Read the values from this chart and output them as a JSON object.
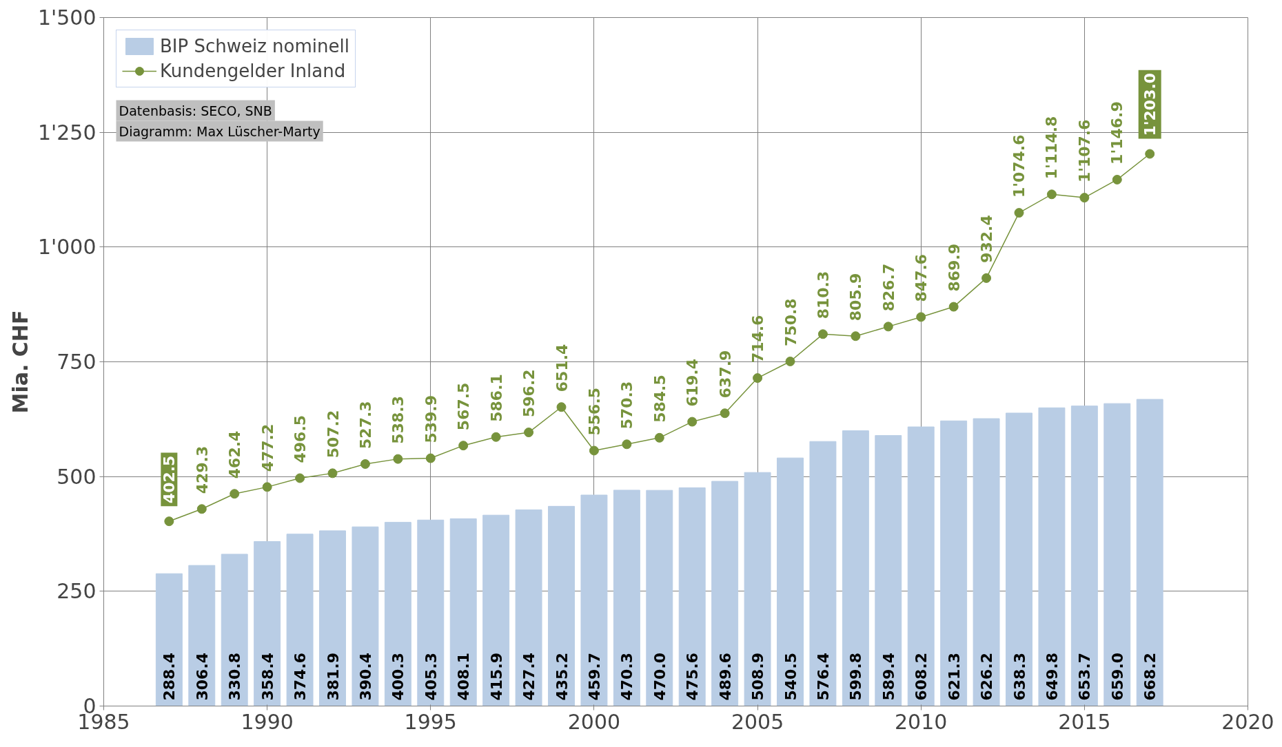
{
  "chart_data": {
    "type": "bar",
    "ylabel": "Mia. CHF",
    "x": [
      1987,
      1988,
      1989,
      1990,
      1991,
      1992,
      1993,
      1994,
      1995,
      1996,
      1997,
      1998,
      1999,
      2000,
      2001,
      2002,
      2003,
      2004,
      2005,
      2006,
      2007,
      2008,
      2009,
      2010,
      2011,
      2012,
      2013,
      2014,
      2015,
      2016,
      2017
    ],
    "series": [
      {
        "name": "BIP Schweiz nominell",
        "color": "#b9cde5",
        "values": [
          288.4,
          306.4,
          330.8,
          358.4,
          374.6,
          381.9,
          390.4,
          400.3,
          405.3,
          408.1,
          415.9,
          427.4,
          435.2,
          459.7,
          470.3,
          470.0,
          475.6,
          489.6,
          508.9,
          540.5,
          576.4,
          599.8,
          589.4,
          608.2,
          621.3,
          626.2,
          638.3,
          649.8,
          653.7,
          659.0,
          668.2
        ],
        "value_labels": [
          "288.4",
          "306.4",
          "330.8",
          "358.4",
          "374.6",
          "381.9",
          "390.4",
          "400.3",
          "405.3",
          "408.1",
          "415.9",
          "427.4",
          "435.2",
          "459.7",
          "470.3",
          "470.0",
          "475.6",
          "489.6",
          "508.9",
          "540.5",
          "576.4",
          "599.8",
          "589.4",
          "608.2",
          "621.3",
          "626.2",
          "638.3",
          "649.8",
          "653.7",
          "659.0",
          "668.2"
        ]
      },
      {
        "name": "Kundengelder Inland",
        "type": "line",
        "color": "#77933c",
        "marker": "circle",
        "values": [
          402.5,
          429.3,
          462.4,
          477.2,
          496.5,
          507.2,
          527.3,
          538.3,
          539.9,
          567.5,
          586.1,
          596.2,
          651.4,
          556.5,
          570.3,
          584.5,
          619.4,
          637.9,
          714.6,
          750.8,
          810.3,
          805.9,
          826.7,
          847.6,
          869.9,
          932.4,
          1074.6,
          1114.8,
          1107.6,
          1146.9,
          1203.0
        ],
        "value_labels": [
          "402.5",
          "429.3",
          "462.4",
          "477.2",
          "496.5",
          "507.2",
          "527.3",
          "538.3",
          "539.9",
          "567.5",
          "586.1",
          "596.2",
          "651.4",
          "556.5",
          "570.3",
          "584.5",
          "619.4",
          "637.9",
          "714.6",
          "750.8",
          "810.3",
          "805.9",
          "826.7",
          "847.6",
          "869.9",
          "932.4",
          "1'074.6",
          "1'114.8",
          "1'107.6",
          "1'146.9",
          "1'203.0"
        ]
      }
    ],
    "xlim": [
      1985,
      2020
    ],
    "xticks": [
      1985,
      1990,
      1995,
      2000,
      2005,
      2010,
      2015,
      2020
    ],
    "ylim": [
      0,
      1500
    ],
    "yticks": [
      0,
      250,
      500,
      750,
      {
        "value": 1000,
        "label": "1'000"
      },
      {
        "value": 1250,
        "label": "1'250"
      },
      {
        "value": 1500,
        "label": "1'500"
      }
    ],
    "grid": true,
    "legend": "top left",
    "annotations": [
      "Datenbasis: SECO, SNB",
      "Diagramm: Max Lüscher-Marty"
    ]
  }
}
